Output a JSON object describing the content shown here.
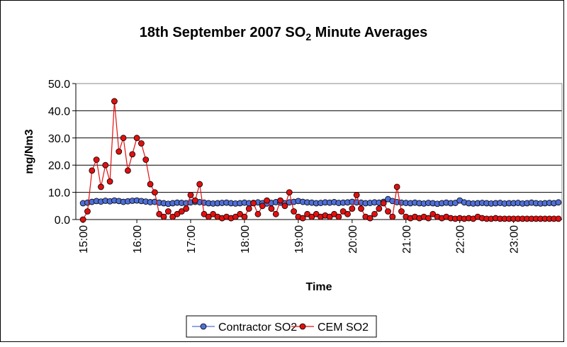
{
  "chart_data": {
    "type": "line",
    "title": [
      "18th September 2007 SO",
      "2",
      " Minute Averages"
    ],
    "x_label": "Time",
    "y_label": "mg/Nm3",
    "x": [
      "15:00",
      "15:05",
      "15:10",
      "15:15",
      "15:20",
      "15:25",
      "15:30",
      "15:35",
      "15:40",
      "15:45",
      "15:50",
      "15:55",
      "16:00",
      "16:05",
      "16:10",
      "16:15",
      "16:20",
      "16:25",
      "16:30",
      "16:35",
      "16:40",
      "16:45",
      "16:50",
      "16:55",
      "17:00",
      "17:05",
      "17:10",
      "17:15",
      "17:20",
      "17:25",
      "17:30",
      "17:35",
      "17:40",
      "17:45",
      "17:50",
      "17:55",
      "18:00",
      "18:05",
      "18:10",
      "18:15",
      "18:20",
      "18:25",
      "18:30",
      "18:35",
      "18:40",
      "18:45",
      "18:50",
      "18:55",
      "19:00",
      "19:05",
      "19:10",
      "19:15",
      "19:20",
      "19:25",
      "19:30",
      "19:35",
      "19:40",
      "19:45",
      "19:50",
      "19:55",
      "20:00",
      "20:05",
      "20:10",
      "20:15",
      "20:20",
      "20:25",
      "20:30",
      "20:35",
      "20:40",
      "20:45",
      "20:50",
      "20:55",
      "21:00",
      "21:05",
      "21:10",
      "21:15",
      "21:20",
      "21:25",
      "21:30",
      "21:35",
      "21:40",
      "21:45",
      "21:50",
      "21:55",
      "22:00",
      "22:05",
      "22:10",
      "22:15",
      "22:20",
      "22:25",
      "22:30",
      "22:35",
      "22:40",
      "22:45",
      "22:50",
      "22:55",
      "23:00",
      "23:05",
      "23:10",
      "23:15",
      "23:20",
      "23:25",
      "23:30",
      "23:35",
      "23:40",
      "23:45",
      "23:50"
    ],
    "series": [
      {
        "name": "Contractor SO2",
        "color": "#4f6fd8",
        "values": [
          6,
          6.2,
          6.5,
          6.8,
          6.6,
          6.9,
          6.7,
          7,
          6.8,
          6.5,
          6.7,
          6.9,
          7,
          6.8,
          6.6,
          6.4,
          6.5,
          6.2,
          6,
          5.8,
          6,
          6.2,
          6.1,
          6,
          6.3,
          6.5,
          6.4,
          6.2,
          6,
          5.9,
          6,
          6.1,
          6.2,
          6,
          5.9,
          6,
          6.2,
          6,
          6.1,
          6.3,
          6,
          5.9,
          6.1,
          6.4,
          6.2,
          6,
          6.3,
          6.5,
          6.8,
          6.5,
          6.3,
          6.2,
          6,
          6.1,
          6.3,
          6.2,
          6.4,
          6.1,
          6.2,
          6.3,
          6.5,
          6.3,
          6.2,
          6,
          6.1,
          6.3,
          6.2,
          6.5,
          7.5,
          6.8,
          6.4,
          6.2,
          6.1,
          6,
          6.2,
          6,
          5.9,
          6.1,
          6,
          5.8,
          6,
          6.2,
          6,
          6.1,
          7,
          6.3,
          6,
          5.9,
          6,
          6.1,
          6,
          5.9,
          6,
          6.1,
          5.9,
          6,
          6,
          6.1,
          5.9,
          6,
          6.2,
          6,
          5.9,
          6,
          6.1,
          6,
          6.3
        ]
      },
      {
        "name": "CEM SO2",
        "color": "#e01010",
        "values": [
          0,
          3,
          18,
          22,
          12,
          20,
          14,
          43.5,
          25,
          30,
          18,
          24,
          30,
          28,
          22,
          13,
          10,
          2,
          1,
          3,
          1,
          2,
          3,
          4,
          9,
          7,
          13,
          2,
          1,
          2,
          1,
          0.5,
          1,
          0.5,
          1,
          2,
          1,
          4,
          6,
          2,
          5,
          7,
          4,
          2,
          7,
          5,
          10,
          3,
          1,
          0.5,
          2,
          1,
          2,
          1,
          1.5,
          1,
          2,
          1,
          3,
          2,
          4,
          9,
          4,
          1,
          0.5,
          2,
          4,
          6,
          3,
          1,
          12,
          3,
          1,
          0.5,
          1,
          0.5,
          1,
          0.5,
          2,
          1,
          0.5,
          1,
          0.5,
          0.3,
          0.5,
          0.3,
          0.5,
          0.3,
          1,
          0.5,
          0.3,
          0.3,
          0.5,
          0.3,
          0.3,
          0.3,
          0.3,
          0.3,
          0.3,
          0.3,
          0.3,
          0.3,
          0.3,
          0.3,
          0.3,
          0.3,
          0.3
        ]
      }
    ],
    "xlim": [
      "14:52",
      "23:54"
    ],
    "xticks": [
      "15:00",
      "16:00",
      "17:00",
      "18:00",
      "19:00",
      "20:00",
      "21:00",
      "22:00",
      "23:00"
    ],
    "ylim": [
      0,
      50
    ],
    "yticks": [
      {
        "value": 0,
        "label": "0.0"
      },
      {
        "value": 10,
        "label": "10.0"
      },
      {
        "value": 20,
        "label": "20.0"
      },
      {
        "value": 30,
        "label": "30.0"
      },
      {
        "value": 40,
        "label": "40.0"
      },
      {
        "value": 50,
        "label": "50.0"
      }
    ],
    "grid": true,
    "legend": "bottom"
  }
}
